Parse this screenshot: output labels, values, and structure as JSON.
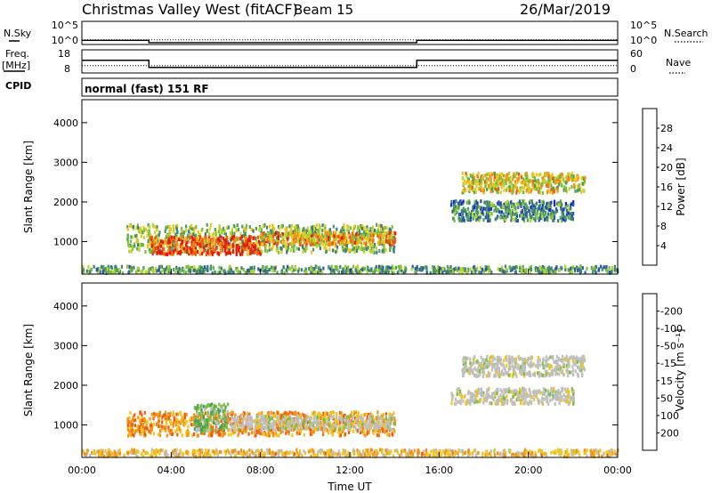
{
  "header": {
    "station": "Christmas Valley West (fitACF)",
    "beam": "Beam 15",
    "date": "26/Mar/2019"
  },
  "control_program": "normal (fast) 151 RF",
  "chart_data": [
    {
      "name": "noise",
      "type": "line",
      "left_label": "N.Sky",
      "right_label": "N.Search",
      "left_ticks": [
        "10^5",
        "10^0"
      ],
      "right_ticks": [
        "10^5",
        "10^0"
      ],
      "x_hours": [
        0,
        3,
        3,
        15,
        15,
        24
      ],
      "sky_level": [
        0.18,
        0.18,
        0.08,
        0.08,
        0.18,
        0.18
      ],
      "search_level": [
        0.2,
        0.2,
        0.2,
        0.2,
        0.2,
        0.2
      ]
    },
    {
      "name": "frequency",
      "type": "line",
      "left_label": "Freq.",
      "left_unit": "[MHz]",
      "left_ticks": [
        18,
        8
      ],
      "right_label": "Nave",
      "right_ticks": [
        60,
        0
      ],
      "cpid_label": "CPID",
      "x_hours": [
        0,
        3,
        3,
        15,
        15,
        24
      ],
      "freq_mhz": [
        13.5,
        13.5,
        10.4,
        10.4,
        13.5,
        13.5
      ],
      "nave": [
        19,
        19,
        19,
        19,
        19,
        19
      ]
    },
    {
      "name": "power",
      "type": "heatmap",
      "ylabel": "Slant Range [km]",
      "yticks": [
        1000,
        2000,
        3000,
        4000
      ],
      "ylim": [
        180,
        4580
      ],
      "xlim_hours": [
        0,
        24
      ],
      "colorbar_label": "Power [dB]",
      "colorbar_ticks": [
        4,
        8,
        12,
        16,
        20,
        24,
        28
      ],
      "colorbar_colors": [
        "#1a2bd6",
        "#2a55a8",
        "#3a7d7a",
        "#4c9e5c",
        "#78bf3c",
        "#b9d42a",
        "#f2c51c",
        "#f49216",
        "#f05a12",
        "#e61a0c"
      ],
      "regions": [
        {
          "t": [
            2.0,
            14.0
          ],
          "range_km": [
            700,
            1400
          ],
          "level": 0.45
        },
        {
          "t": [
            3.0,
            8.0
          ],
          "range_km": [
            650,
            1100
          ],
          "level": 0.9
        },
        {
          "t": [
            8.0,
            14.0
          ],
          "range_km": [
            900,
            1200
          ],
          "level": 0.7
        },
        {
          "t": [
            17.0,
            22.5
          ],
          "range_km": [
            2200,
            2700
          ],
          "level": 0.6
        },
        {
          "t": [
            16.5,
            22.0
          ],
          "range_km": [
            1500,
            2000
          ],
          "level": 0.3
        },
        {
          "t": [
            0.0,
            24.0
          ],
          "range_km": [
            180,
            350
          ],
          "level": 0.35
        }
      ]
    },
    {
      "name": "velocity",
      "type": "heatmap",
      "ylabel": "Slant Range [km]",
      "yticks": [
        1000,
        2000,
        3000,
        4000
      ],
      "ylim": [
        180,
        4580
      ],
      "xlim_hours": [
        0,
        24
      ],
      "xticks": [
        "00:00",
        "04:00",
        "08:00",
        "12:00",
        "16:00",
        "20:00",
        "00:00"
      ],
      "xlabel": "Time UT",
      "colorbar_label": "Velocity [m s⁻¹]",
      "colorbar_ticks": [
        "200",
        "100",
        "50",
        "15",
        "-15",
        "-50",
        "-100",
        "-200"
      ],
      "colorbar_colors": [
        "#1a2bd6",
        "#2a55a8",
        "#3a7d7a",
        "#4c9e5c",
        "#78bf3c",
        "#bfbfbf",
        "#bfbfbf",
        "#f2c51c",
        "#f49216",
        "#f05a12",
        "#e61a0c"
      ],
      "regions": [
        {
          "t": [
            2.0,
            14.0
          ],
          "range_km": [
            700,
            1300
          ],
          "level": 0.78
        },
        {
          "t": [
            6.5,
            14.0
          ],
          "range_km": [
            850,
            1200
          ],
          "level": 0.55
        },
        {
          "t": [
            5.0,
            6.5
          ],
          "range_km": [
            800,
            1500
          ],
          "level": 0.4
        },
        {
          "t": [
            17.0,
            22.5
          ],
          "range_km": [
            2200,
            2700
          ],
          "level": 0.55
        },
        {
          "t": [
            16.5,
            22.0
          ],
          "range_km": [
            1500,
            1900
          ],
          "level": 0.55
        },
        {
          "t": [
            0.0,
            24.0
          ],
          "range_km": [
            180,
            350
          ],
          "level": 0.7
        }
      ]
    }
  ]
}
